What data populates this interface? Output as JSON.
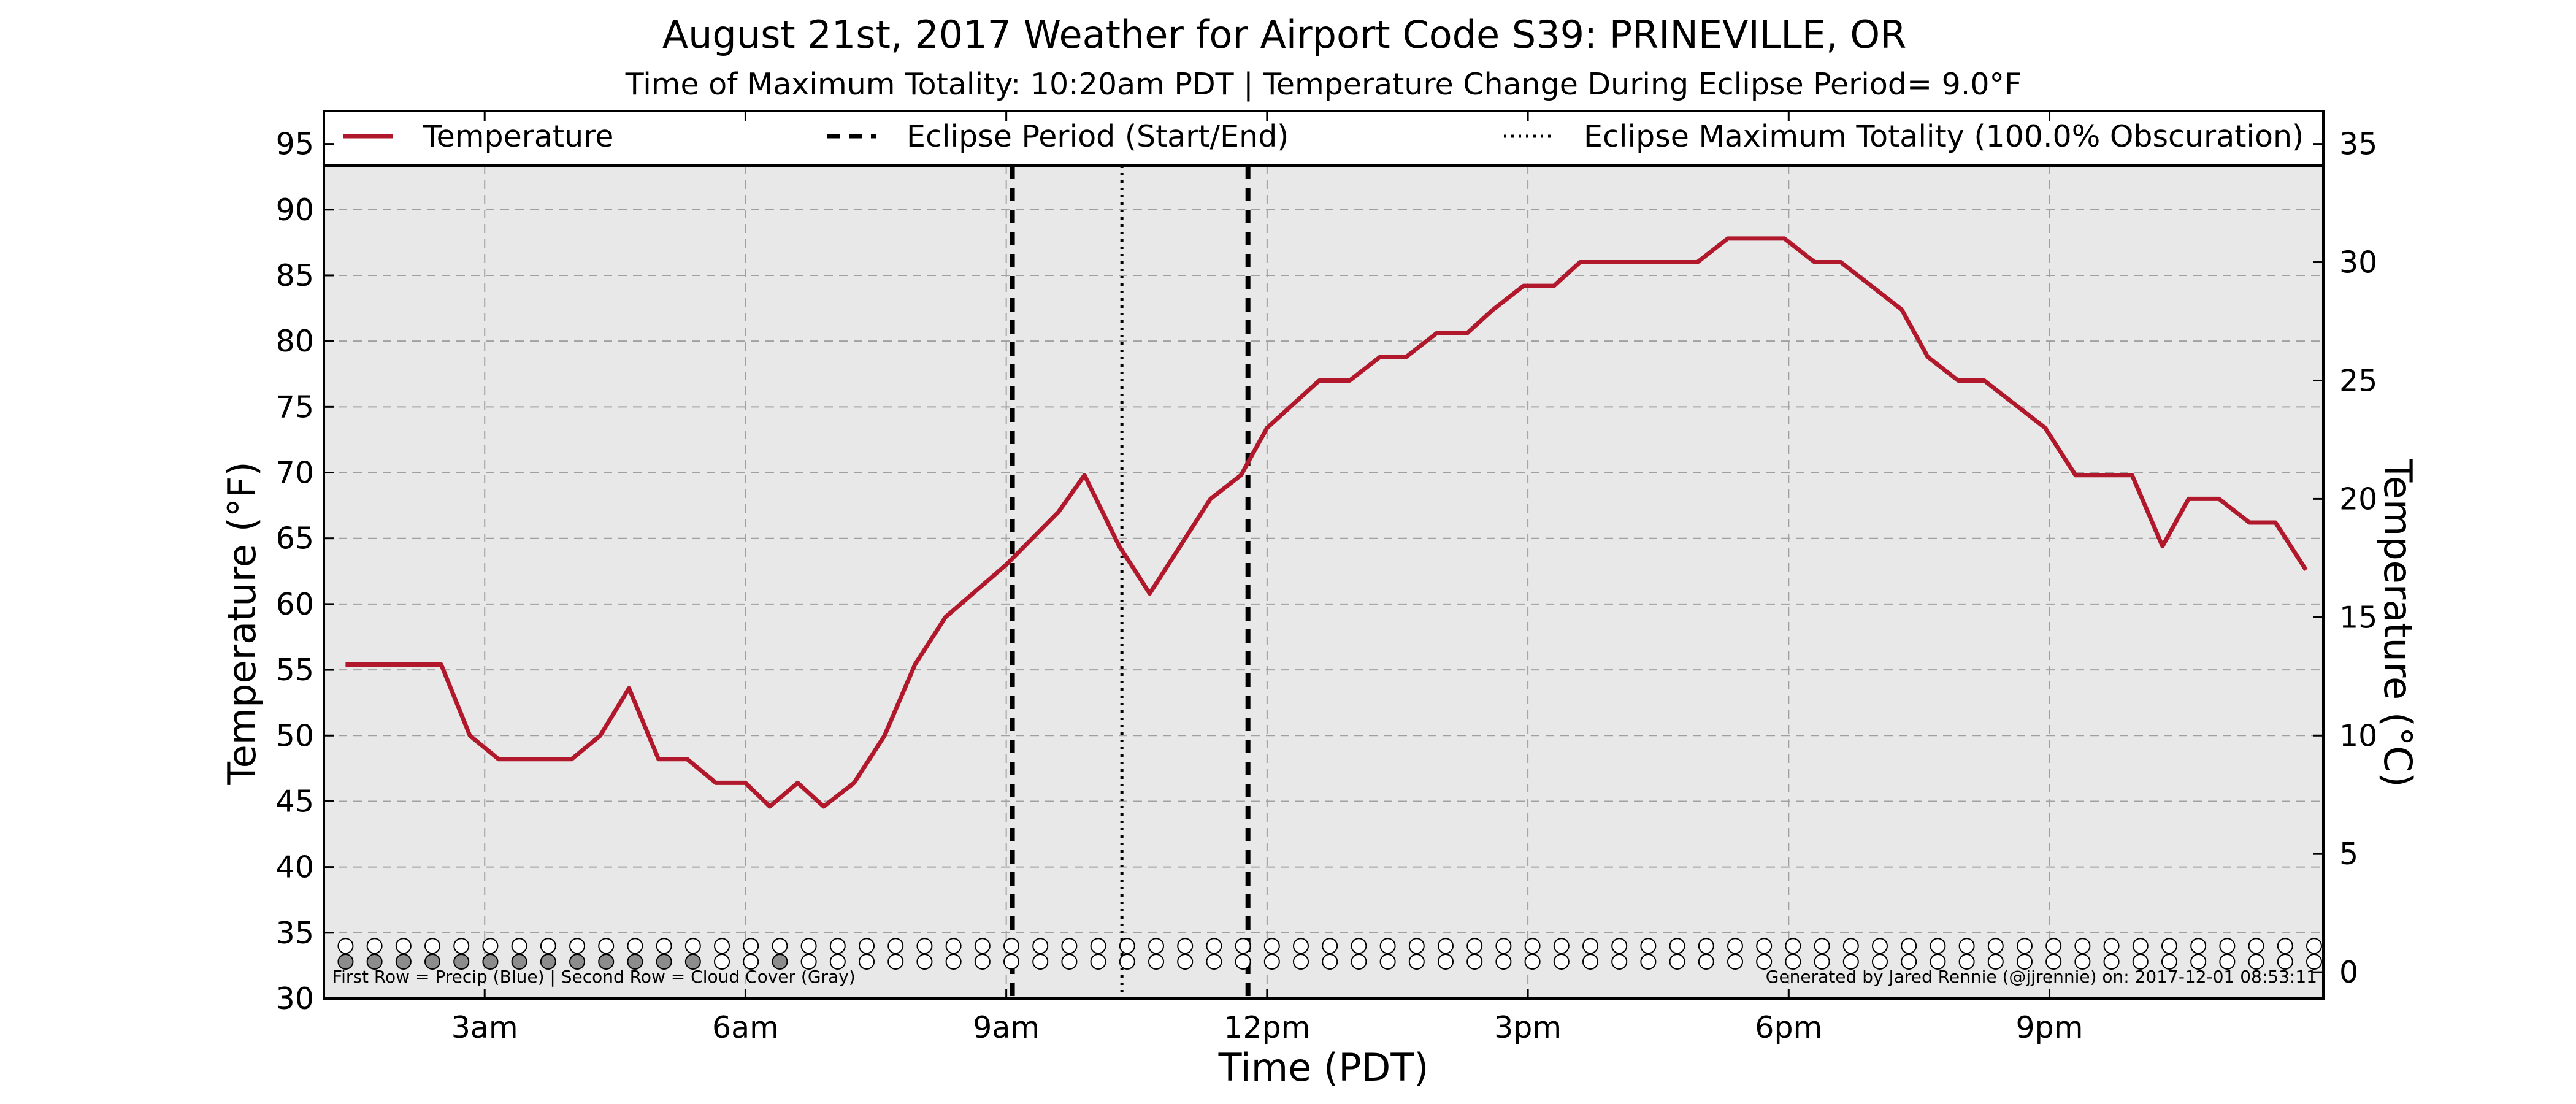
{
  "chart_data": {
    "type": "line",
    "title": "August 21st, 2017 Weather for Airport Code S39: PRINEVILLE, OR",
    "subtitle": "Time of Maximum Totality: 10:20am PDT | Temperature Change During Eclipse Period= 9.0°F",
    "xlabel": "Time (PDT)",
    "ylabel": "Temperature (°F)",
    "ylabel_right": "Temperature (°C)",
    "xlim": [
      1.15,
      24.15
    ],
    "ylim": [
      30,
      97.5
    ],
    "ylim_right_c": [
      -1.111,
      36.389
    ],
    "grid": true,
    "x_ticks": [
      {
        "x": 3,
        "label": "3am"
      },
      {
        "x": 6,
        "label": "6am"
      },
      {
        "x": 9,
        "label": "9am"
      },
      {
        "x": 12,
        "label": "12pm"
      },
      {
        "x": 15,
        "label": "3pm"
      },
      {
        "x": 18,
        "label": "6pm"
      },
      {
        "x": 21,
        "label": "9pm"
      }
    ],
    "y_ticks": [
      30,
      35,
      40,
      45,
      50,
      55,
      60,
      65,
      70,
      75,
      80,
      85,
      90,
      95
    ],
    "y_ticks_right": [
      0,
      5,
      10,
      15,
      20,
      25,
      30,
      35
    ],
    "legend": {
      "placement": "top",
      "entries": [
        {
          "label": "Temperature",
          "style": "solid"
        },
        {
          "label": "Eclipse Period (Start/End)",
          "style": "dashed"
        },
        {
          "label": "Eclipse Maximum Totality (100.0% Obscuration)",
          "style": "dotted"
        }
      ]
    },
    "series": [
      {
        "name": "Temperature",
        "color": "#b2182b",
        "x": [
          1.4,
          2.0,
          2.5,
          2.83,
          3.16,
          3.5,
          4.0,
          4.33,
          4.66,
          5.0,
          5.33,
          5.66,
          6.0,
          6.28,
          6.6,
          6.9,
          7.25,
          7.6,
          7.95,
          8.3,
          8.65,
          9.0,
          9.3,
          9.6,
          9.9,
          10.3,
          10.65,
          11.0,
          11.35,
          11.7,
          12.0,
          12.3,
          12.6,
          12.95,
          13.3,
          13.6,
          13.95,
          14.3,
          14.6,
          14.95,
          15.3,
          15.6,
          15.95,
          16.3,
          16.6,
          16.95,
          17.3,
          17.6,
          17.95,
          18.3,
          18.6,
          18.95,
          19.3,
          19.6,
          19.95,
          20.25,
          20.6,
          20.95,
          21.3,
          21.6,
          21.95,
          22.3,
          22.6,
          22.95,
          23.3,
          23.6,
          23.95
        ],
        "values": [
          55.4,
          55.4,
          55.4,
          50.0,
          48.2,
          48.2,
          48.2,
          50.0,
          53.6,
          48.2,
          48.2,
          46.4,
          46.4,
          44.6,
          46.4,
          44.6,
          46.4,
          50.0,
          55.4,
          59.0,
          61.0,
          63.0,
          65.0,
          67.0,
          69.8,
          64.4,
          60.8,
          64.4,
          68.0,
          69.8,
          73.4,
          75.2,
          77.0,
          77.0,
          78.8,
          78.8,
          80.6,
          80.6,
          82.4,
          84.2,
          84.2,
          86.0,
          86.0,
          86.0,
          86.0,
          86.0,
          87.8,
          87.8,
          87.8,
          86.0,
          86.0,
          84.2,
          82.4,
          78.8,
          77.0,
          77.0,
          75.2,
          73.4,
          69.8,
          69.8,
          69.8,
          64.4,
          68.0,
          68.0,
          66.2,
          66.2,
          62.6
        ]
      }
    ],
    "eclipse_period": {
      "start": 9.07,
      "end": 11.78
    },
    "eclipse_max_totality": 10.33,
    "precip_row": {
      "y": 34.0,
      "x_start": 1.4,
      "x_step": 0.333,
      "count": 69,
      "fill": "#ffffff"
    },
    "cloud_row": {
      "y": 32.8,
      "x_start": 1.4,
      "x_step": 0.333,
      "count": 69,
      "gray_indices": [
        0,
        1,
        2,
        3,
        4,
        5,
        6,
        7,
        8,
        9,
        10,
        11,
        12,
        15
      ],
      "gray_fill": "#8c8c8c",
      "fill": "#ffffff"
    },
    "annotation_left": "First Row = Precip (Blue) | Second Row = Cloud Cover (Gray)",
    "annotation_right": "Generated by Jared Rennie (@jjrennie) on: 2017-12-01 08:53:11"
  }
}
